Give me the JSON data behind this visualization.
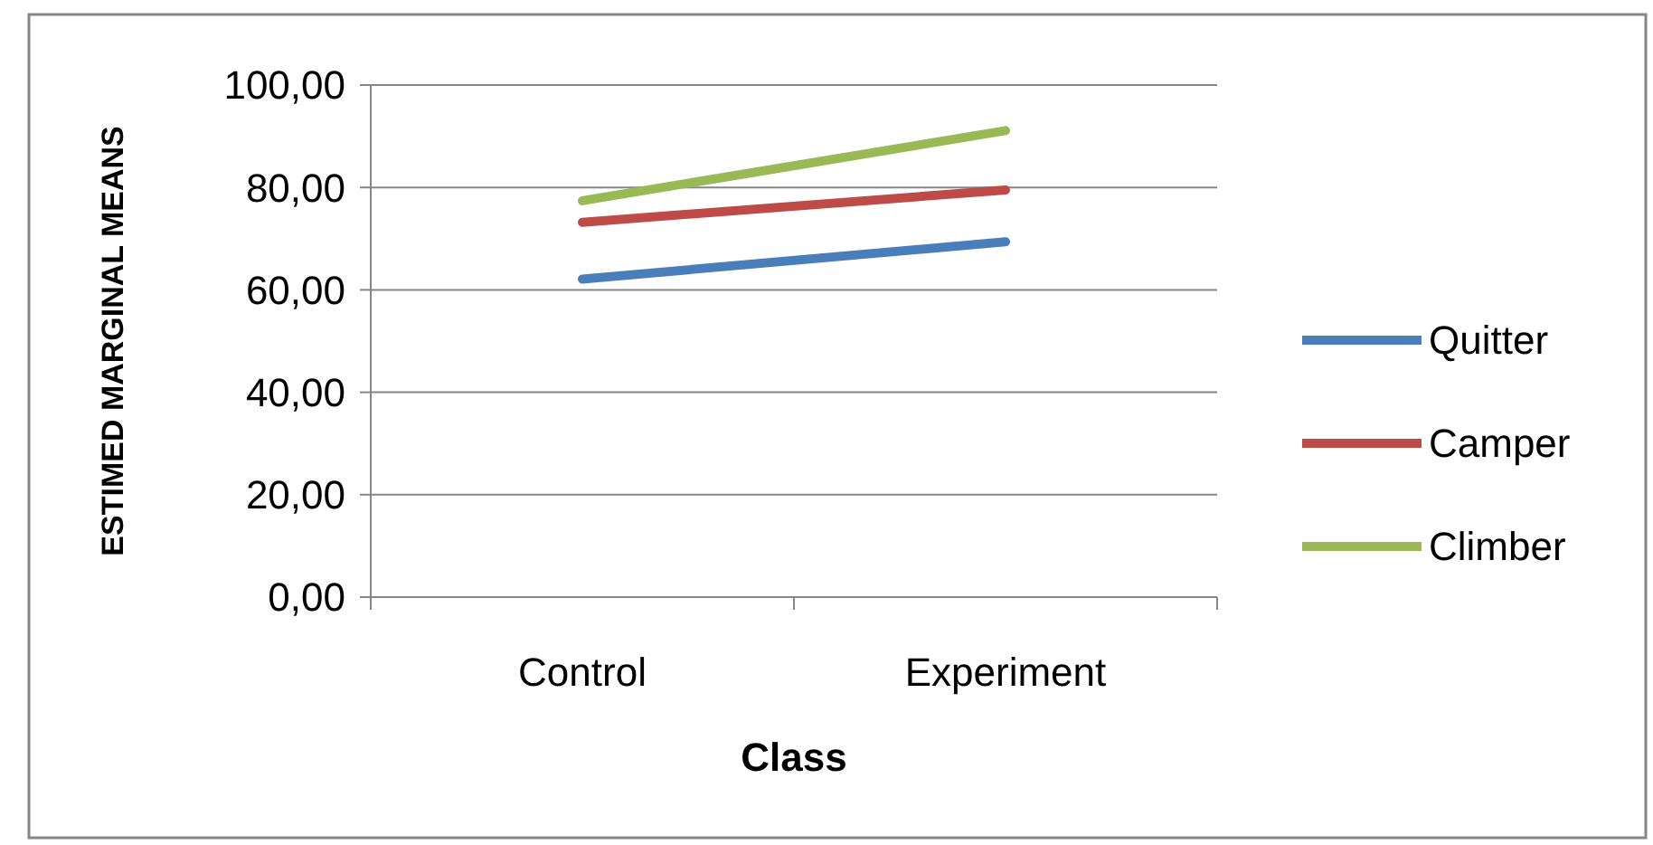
{
  "chart_data": {
    "type": "line",
    "xlabel": "Class",
    "ylabel": "ESTIMED MARGINAL MEANS",
    "categories": [
      "Control",
      "Experiment"
    ],
    "series": [
      {
        "name": "Quitter",
        "color": "#4a7ebb",
        "values": [
          62.1,
          69.4
        ]
      },
      {
        "name": "Camper",
        "color": "#be4b48",
        "values": [
          73.2,
          79.5
        ]
      },
      {
        "name": "Climber",
        "color": "#98b954",
        "values": [
          77.4,
          91.1
        ]
      }
    ],
    "ylim": [
      0,
      100
    ],
    "yticks": [
      {
        "value": 0,
        "label": "0,00"
      },
      {
        "value": 20,
        "label": "20,00"
      },
      {
        "value": 40,
        "label": "40,00"
      },
      {
        "value": 60,
        "label": "60,00"
      },
      {
        "value": 80,
        "label": "80,00"
      },
      {
        "value": 100,
        "label": "100,00"
      }
    ],
    "grid": "y",
    "legend": "right",
    "marker": "none",
    "line_style": "solid"
  }
}
